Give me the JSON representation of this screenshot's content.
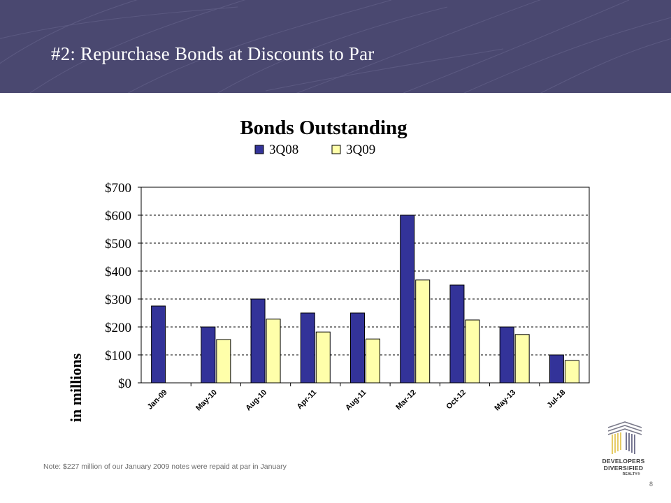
{
  "slide": {
    "title": "#2: Repurchase Bonds at Discounts to Par",
    "footnote": "Note: $227 million of our January 2009 notes were repaid at par in January",
    "page_number": "8"
  },
  "logo": {
    "line1": "DEVELOPERS",
    "line2": "DIVERSIFIED",
    "line3": "REALTY®"
  },
  "colors": {
    "header": "#4a4870",
    "series_3Q08": "#333399",
    "series_3Q09": "#ffffaa"
  },
  "chart_data": {
    "type": "bar",
    "title": "Bonds Outstanding",
    "ylabel": "in millions",
    "xlabel": "",
    "categories": [
      "Jan-09",
      "May-10",
      "Aug-10",
      "Apr-11",
      "Aug-11",
      "Mar-12",
      "Oct-12",
      "May-13",
      "Jul-18"
    ],
    "series": [
      {
        "name": "3Q08",
        "values": [
          275,
          200,
          300,
          250,
          250,
          600,
          350,
          200,
          100
        ]
      },
      {
        "name": "3Q09",
        "values": [
          null,
          155,
          228,
          182,
          157,
          368,
          225,
          173,
          80
        ]
      }
    ],
    "ylim": [
      0,
      700
    ],
    "yticks": [
      0,
      100,
      200,
      300,
      400,
      500,
      600,
      700
    ],
    "ytick_labels": [
      "$0",
      "$100",
      "$200",
      "$300",
      "$400",
      "$500",
      "$600",
      "$700"
    ],
    "grid": true,
    "legend": "top"
  }
}
